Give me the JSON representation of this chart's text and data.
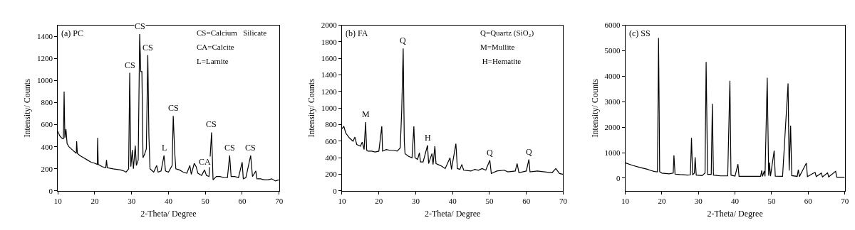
{
  "chart_data": [
    {
      "type": "line",
      "title": "(a) PC",
      "xlabel": "2-Theta/ Degree",
      "ylabel": "Intensity/ Counts",
      "color": "#000000",
      "x": [
        10,
        10.5,
        11,
        11.5,
        11.7,
        11.9,
        12.2,
        12.5,
        13,
        14,
        15,
        15.1,
        15.3,
        16,
        17,
        18,
        19,
        20,
        20.7,
        20.8,
        20.95,
        22,
        23,
        23.2,
        23.4,
        25,
        27,
        28,
        28.5,
        29.2,
        29.5,
        29.8,
        30.2,
        30.5,
        31,
        31.3,
        31.8,
        32.2,
        32.5,
        32.8,
        33.1,
        33.5,
        34,
        34.4,
        34.7,
        35,
        36,
        36.8,
        37.2,
        38,
        38.8,
        39.2,
        40,
        41,
        41.3,
        41.7,
        42,
        43,
        44,
        45,
        45.8,
        46.2,
        47,
        47.5,
        48,
        49,
        49.8,
        50.3,
        51,
        51.7,
        52.1,
        53,
        54,
        55,
        56,
        56.6,
        57,
        58,
        59,
        60,
        60.3,
        61,
        62.3,
        62.8,
        63.7,
        64,
        65,
        66,
        67,
        68,
        69,
        70
      ],
      "values": [
        540,
        500,
        480,
        470,
        900,
        480,
        560,
        430,
        400,
        370,
        340,
        450,
        340,
        320,
        300,
        280,
        260,
        250,
        240,
        480,
        240,
        220,
        210,
        280,
        210,
        200,
        190,
        180,
        170,
        200,
        1070,
        220,
        370,
        200,
        410,
        230,
        280,
        1420,
        1080,
        1080,
        300,
        330,
        380,
        1230,
        500,
        200,
        170,
        230,
        170,
        180,
        320,
        180,
        170,
        230,
        680,
        350,
        200,
        190,
        170,
        160,
        230,
        150,
        250,
        220,
        160,
        140,
        190,
        140,
        130,
        530,
        100,
        130,
        130,
        120,
        120,
        320,
        130,
        130,
        120,
        260,
        110,
        120,
        320,
        130,
        180,
        110,
        110,
        100,
        100,
        110,
        90,
        100
      ],
      "xlim": [
        10,
        70
      ],
      "xticks": [
        10,
        20,
        30,
        40,
        50,
        60,
        70
      ],
      "ylim": [
        0,
        1500
      ],
      "yticks": [
        0,
        200,
        400,
        600,
        800,
        1000,
        1200,
        1400
      ],
      "annotations": [
        "CS=Calcium   Silicate",
        "CA=Calcite",
        "L=Larnite",
        {
          "text": "CS",
          "x": 29.5,
          "y": 1070
        },
        {
          "text": "CS",
          "x": 32.2,
          "y": 1420
        },
        {
          "text": "CS",
          "x": 34.4,
          "y": 1230
        },
        {
          "text": "CS",
          "x": 41.3,
          "y": 680
        },
        {
          "text": "CS",
          "x": 51.7,
          "y": 530
        },
        {
          "text": "CS",
          "x": 56.6,
          "y": 320
        },
        {
          "text": "CS",
          "x": 62.3,
          "y": 320
        },
        {
          "text": "L",
          "x": 38.8,
          "y": 320
        },
        {
          "text": "CA",
          "x": 49.8,
          "y": 190
        }
      ]
    },
    {
      "type": "line",
      "title": "(b) FA",
      "xlabel": "2-Theta/ Degree",
      "ylabel": "Intensity/ Counts",
      "color": "#000000",
      "x": [
        10,
        10.5,
        11,
        12,
        13,
        13.5,
        14,
        15,
        15.5,
        16,
        16.4,
        16.7,
        17,
        18,
        19,
        20,
        20.8,
        21,
        22,
        23,
        24,
        25,
        25.8,
        26.2,
        26.6,
        26.9,
        27.1,
        28,
        29,
        29.5,
        29.8,
        30.5,
        31,
        31.3,
        32,
        33.2,
        33.5,
        34.4,
        34.7,
        35.2,
        35.5,
        36,
        37,
        38,
        39.3,
        39.7,
        40.9,
        41.3,
        42,
        42.5,
        43,
        45,
        46,
        47,
        48,
        49,
        50.1,
        50.5,
        52,
        54,
        55,
        57,
        57.5,
        58,
        60,
        60.7,
        61,
        63,
        65,
        67,
        68,
        69,
        70
      ],
      "values": [
        750,
        780,
        700,
        640,
        600,
        650,
        560,
        540,
        590,
        500,
        830,
        490,
        480,
        480,
        470,
        480,
        780,
        480,
        500,
        490,
        490,
        480,
        520,
        970,
        1720,
        600,
        450,
        420,
        400,
        780,
        400,
        380,
        460,
        350,
        350,
        550,
        330,
        450,
        320,
        540,
        330,
        320,
        300,
        270,
        400,
        260,
        570,
        270,
        260,
        320,
        250,
        240,
        260,
        250,
        270,
        250,
        370,
        210,
        240,
        250,
        230,
        240,
        330,
        220,
        240,
        380,
        230,
        240,
        230,
        220,
        270,
        210,
        200
      ],
      "xlim": [
        10,
        70
      ],
      "xticks": [
        10,
        20,
        30,
        40,
        50,
        60,
        70
      ],
      "ylim": [
        0,
        2000
      ],
      "yticks": [
        0,
        200,
        400,
        600,
        800,
        1000,
        1200,
        1400,
        1600,
        1800,
        2000
      ],
      "annotations": [
        "Q=Quartz (SiO₂)",
        "M=Mullite",
        " H=Hematite",
        {
          "text": "M",
          "x": 16.4,
          "y": 830
        },
        {
          "text": "Q",
          "x": 26.6,
          "y": 1720
        },
        {
          "text": "H",
          "x": 33.2,
          "y": 550
        },
        {
          "text": "Q",
          "x": 50.1,
          "y": 370
        },
        {
          "text": "Q",
          "x": 60.7,
          "y": 380
        }
      ]
    },
    {
      "type": "line",
      "title": "(c) SS",
      "xlabel": "2-Theta/ Degree",
      "ylabel": "Intensity/ Counts",
      "color": "#000000",
      "x": [
        10,
        12,
        14,
        16,
        17,
        18,
        18.8,
        19.1,
        19.4,
        20,
        22,
        23.1,
        23.3,
        23.6,
        25,
        27,
        27.8,
        28.1,
        28.4,
        28.9,
        29.1,
        29.4,
        31,
        31.8,
        32.1,
        32.5,
        33.5,
        33.8,
        34.1,
        36,
        38,
        38.6,
        38.9,
        40,
        40.8,
        41.1,
        43,
        45,
        47,
        47.3,
        47.5,
        48,
        48.2,
        48.8,
        49.2,
        49.4,
        49.7,
        50.7,
        51,
        53,
        54.5,
        54.8,
        55.2,
        55.5,
        57,
        57.3,
        57.6,
        59.5,
        59.8,
        61.5,
        61.9,
        62.2,
        63.6,
        63.9,
        65.3,
        65.6,
        67.5,
        67.8,
        70
      ],
      "values": [
        600,
        500,
        420,
        350,
        300,
        260,
        250,
        5500,
        250,
        200,
        170,
        200,
        900,
        160,
        140,
        120,
        130,
        1580,
        130,
        200,
        820,
        120,
        100,
        200,
        4560,
        150,
        150,
        2920,
        120,
        90,
        90,
        3820,
        120,
        80,
        550,
        70,
        70,
        70,
        70,
        300,
        70,
        280,
        70,
        3940,
        100,
        610,
        80,
        1080,
        80,
        70,
        3720,
        300,
        2060,
        100,
        70,
        330,
        60,
        590,
        60,
        200,
        220,
        60,
        200,
        50,
        210,
        50,
        270,
        40,
        40
      ],
      "xlim": [
        10,
        70
      ],
      "xticks": [
        10,
        20,
        30,
        40,
        50,
        60,
        70
      ],
      "ylim": [
        -500,
        6000
      ],
      "yticks": [
        0,
        1000,
        2000,
        3000,
        4000,
        5000,
        6000
      ]
    }
  ]
}
